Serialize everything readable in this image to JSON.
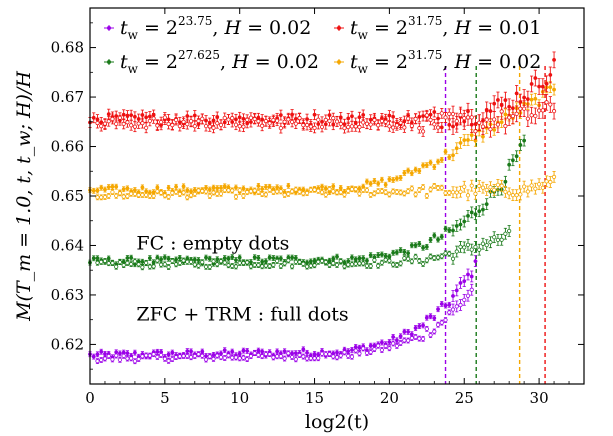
{
  "chart_data": {
    "type": "scatter",
    "xlabel": "log2(t)",
    "ylabel": "M(T_m = 1.0, t, t_w; H)/H",
    "xlim": [
      0,
      33
    ],
    "ylim": [
      0.612,
      0.688
    ],
    "x_ticks": [
      0,
      5,
      10,
      15,
      20,
      25,
      30
    ],
    "y_ticks": [
      0.62,
      0.63,
      0.64,
      0.65,
      0.66,
      0.67,
      0.68
    ],
    "grid": false,
    "legend_position": "top",
    "annotations": [
      "FC : empty dots",
      "ZFC + TRM : full dots"
    ],
    "series": [
      {
        "key": "tw2375_H002",
        "legend": {
          "tw_exp": "23.75",
          "H": "0.02"
        },
        "color": "#9b00e8",
        "tw_log2": 23.75,
        "full": {
          "x_start": 0,
          "x_end": 25.8,
          "plateau": 0.6178,
          "shape": [
            [
              0,
              0.6178
            ],
            [
              17,
              0.6185
            ],
            [
              20,
              0.6205
            ],
            [
              22,
              0.6235
            ],
            [
              23.5,
              0.627
            ],
            [
              24.5,
              0.6305
            ],
            [
              25.8,
              0.636
            ]
          ]
        },
        "empty": {
          "x_start": 0.5,
          "x_end": 25.7,
          "plateau": 0.6172,
          "shape": [
            [
              0.5,
              0.6172
            ],
            [
              17,
              0.6178
            ],
            [
              20,
              0.6195
            ],
            [
              22,
              0.6215
            ],
            [
              23.5,
              0.6245
            ],
            [
              24.5,
              0.6275
            ],
            [
              25.7,
              0.6315
            ]
          ]
        }
      },
      {
        "key": "tw27625_H002",
        "legend": {
          "tw_exp": "27.625",
          "H": "0.02"
        },
        "color": "#1a7a1a",
        "tw_log2": 25.8,
        "full": {
          "x_start": 0,
          "x_end": 29,
          "plateau": 0.6368,
          "shape": [
            [
              0,
              0.6368
            ],
            [
              18,
              0.6372
            ],
            [
              21,
              0.6388
            ],
            [
              23,
              0.641
            ],
            [
              24.5,
              0.6435
            ],
            [
              26,
              0.6475
            ],
            [
              27.5,
              0.6525
            ],
            [
              29,
              0.6605
            ]
          ]
        },
        "empty": {
          "x_start": 0.5,
          "x_end": 28.2,
          "plateau": 0.6362,
          "shape": [
            [
              0.5,
              0.6362
            ],
            [
              20,
              0.6365
            ],
            [
              23,
              0.6375
            ],
            [
              25,
              0.639
            ],
            [
              26.5,
              0.6405
            ],
            [
              28.2,
              0.642
            ]
          ]
        }
      },
      {
        "key": "tw3175_H002",
        "legend": {
          "tw_exp": "31.75",
          "H": "0.02"
        },
        "color": "#f5a700",
        "tw_log2": 28.7,
        "full": {
          "x_start": 0,
          "x_end": 31,
          "plateau": 0.6512,
          "shape": [
            [
              0,
              0.6512
            ],
            [
              17,
              0.6515
            ],
            [
              20,
              0.653
            ],
            [
              22,
              0.6555
            ],
            [
              24,
              0.6585
            ],
            [
              26,
              0.6625
            ],
            [
              28,
              0.666
            ],
            [
              30,
              0.6695
            ],
            [
              31,
              0.672
            ]
          ]
        },
        "empty": {
          "x_start": 0.5,
          "x_end": 31,
          "plateau": 0.6502,
          "shape": [
            [
              0.5,
              0.6502
            ],
            [
              29,
              0.6512
            ],
            [
              31,
              0.6528
            ]
          ]
        }
      },
      {
        "key": "tw3175_H001",
        "legend": {
          "tw_exp": "31.75",
          "H": "0.01"
        },
        "color": "#ee1111",
        "tw_log2": 30.4,
        "full": {
          "x_start": 0,
          "x_end": 31,
          "plateau": 0.6655,
          "shape": [
            [
              0,
              0.6655
            ],
            [
              23,
              0.6655
            ],
            [
              26,
              0.6665
            ],
            [
              28,
              0.669
            ],
            [
              29.5,
              0.6715
            ],
            [
              30.5,
              0.6745
            ],
            [
              31,
              0.676
            ]
          ]
        },
        "empty": {
          "x_start": 0.5,
          "x_end": 31,
          "plateau": 0.6648,
          "shape": [
            [
              0.5,
              0.6648
            ],
            [
              26,
              0.6648
            ],
            [
              28.5,
              0.6658
            ],
            [
              31,
              0.6675
            ]
          ]
        }
      }
    ]
  }
}
